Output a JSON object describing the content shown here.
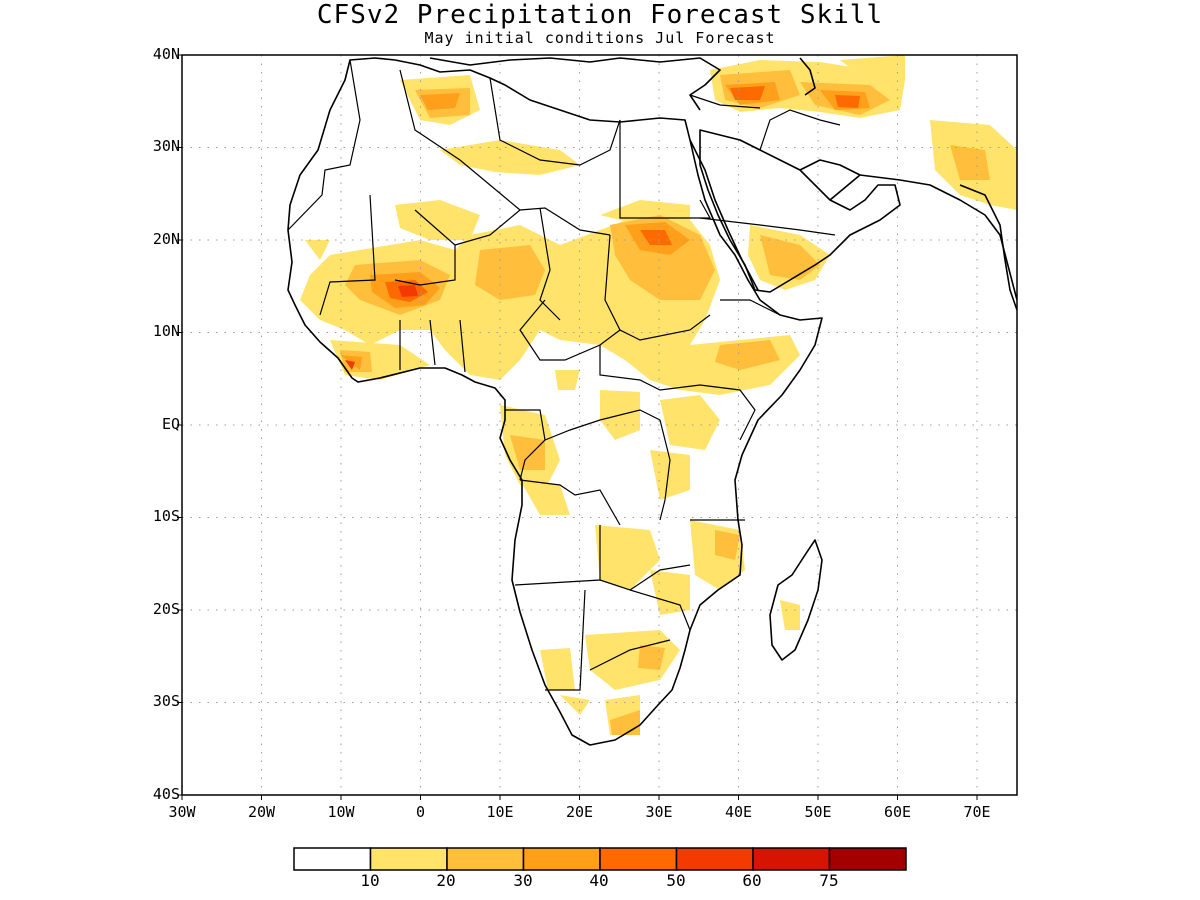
{
  "title": "CFSv2 Precipitation Forecast Skill",
  "subtitle": "May initial conditions  Jul Forecast",
  "lat_labels": [
    "40N",
    "30N",
    "20N",
    "10N",
    "EQ",
    "10S",
    "20S",
    "30S",
    "40S"
  ],
  "lon_labels": [
    "30W",
    "20W",
    "10W",
    "0",
    "10E",
    "20E",
    "30E",
    "40E",
    "50E",
    "60E",
    "70E"
  ],
  "colorbar": {
    "colors": [
      "#ffffff",
      "#ffe36b",
      "#ffbe3c",
      "#ff9f1a",
      "#ff6a00",
      "#f43a00",
      "#d61400",
      "#a20000"
    ],
    "tick_labels": [
      "10",
      "20",
      "30",
      "40",
      "50",
      "60",
      "75"
    ]
  },
  "map": {
    "projection": "lat-lon",
    "lon_range": [
      -30,
      75
    ],
    "lat_range": [
      -40,
      40
    ],
    "gridlines": "dotted",
    "region": "Africa and Middle East"
  }
}
